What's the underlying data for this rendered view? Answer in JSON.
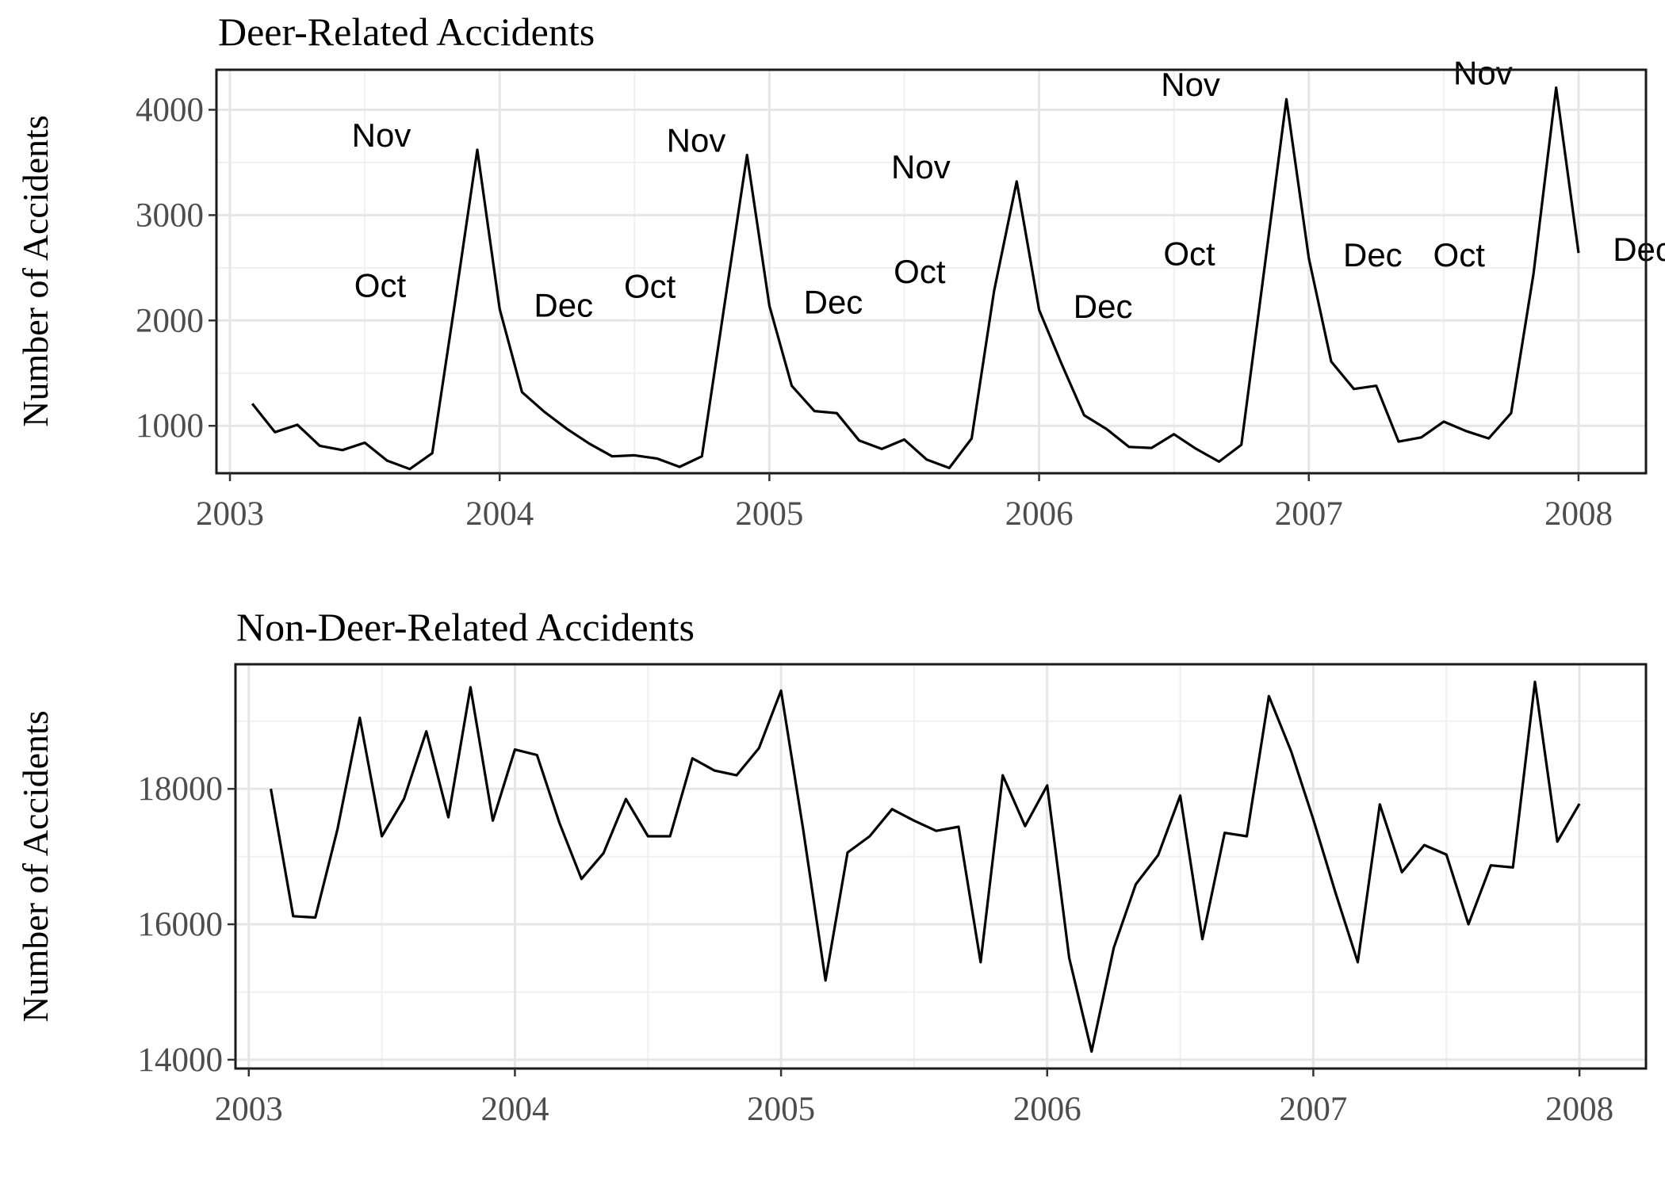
{
  "chart_data": [
    {
      "type": "line",
      "title": "Deer-Related Accidents",
      "xlabel": "",
      "ylabel": "Number of Accidents",
      "xlim": [
        2002.95,
        2008.25
      ],
      "ylim": [
        550,
        4380
      ],
      "x_ticks": [
        2003,
        2004,
        2005,
        2006,
        2007,
        2008
      ],
      "x_tick_labels": [
        "2003",
        "2004",
        "2005",
        "2006",
        "2007",
        "2008"
      ],
      "y_ticks": [
        1000,
        2000,
        3000,
        4000
      ],
      "y_tick_labels": [
        "1000",
        "2000",
        "3000",
        "4000"
      ],
      "grid": true,
      "series": [
        {
          "x": [
            2003.083,
            2003.167,
            2003.25,
            2003.333,
            2003.417,
            2003.5,
            2003.583,
            2003.667,
            2003.75,
            2003.833,
            2003.917,
            2004.0,
            2004.083,
            2004.167,
            2004.25,
            2004.333,
            2004.417,
            2004.5,
            2004.583,
            2004.667,
            2004.75,
            2004.833,
            2004.917,
            2005.0,
            2005.083,
            2005.167,
            2005.25,
            2005.333,
            2005.417,
            2005.5,
            2005.583,
            2005.667,
            2005.75,
            2005.833,
            2005.917,
            2006.0,
            2006.083,
            2006.167,
            2006.25,
            2006.333,
            2006.417,
            2006.5,
            2006.583,
            2006.667,
            2006.75,
            2006.833,
            2006.917,
            2007.0,
            2007.083,
            2007.167,
            2007.25,
            2007.333,
            2007.417,
            2007.5,
            2007.583,
            2007.667,
            2007.75,
            2007.833,
            2007.917,
            2008.0
          ],
          "y": [
            1210,
            940,
            1010,
            810,
            770,
            840,
            670,
            590,
            740,
            2150,
            3620,
            2110,
            1320,
            1130,
            970,
            830,
            710,
            720,
            690,
            610,
            710,
            2140,
            3570,
            2140,
            1380,
            1140,
            1120,
            860,
            780,
            870,
            680,
            600,
            880,
            2280,
            3320,
            2100,
            1590,
            1100,
            970,
            800,
            790,
            920,
            780,
            660,
            820,
            2450,
            4100,
            2590,
            1610,
            1350,
            1380,
            850,
            890,
            1040,
            950,
            880,
            1120,
            2440,
            4210,
            2640
          ]
        }
      ],
      "annotations": [
        {
          "text": "Oct",
          "x": 2003.75,
          "y": 2150
        },
        {
          "text": "Nov",
          "x": 2003.833,
          "y": 3620
        },
        {
          "text": "Dec",
          "x": 2004.083,
          "y": 2110
        },
        {
          "text": "Oct",
          "x": 2004.75,
          "y": 2140
        },
        {
          "text": "Nov",
          "x": 2005.0,
          "y": 3570
        },
        {
          "text": "Dec",
          "x": 2005.083,
          "y": 2140
        },
        {
          "text": "Oct",
          "x": 2005.75,
          "y": 2280
        },
        {
          "text": "Nov",
          "x": 2005.833,
          "y": 3320
        },
        {
          "text": "Dec",
          "x": 2006.083,
          "y": 2100
        },
        {
          "text": "Oct",
          "x": 2006.75,
          "y": 2450
        },
        {
          "text": "Nov",
          "x": 2006.833,
          "y": 4100
        },
        {
          "text": "Dec",
          "x": 2007.083,
          "y": 2590
        },
        {
          "text": "Oct",
          "x": 2007.75,
          "y": 2440
        },
        {
          "text": "Nov",
          "x": 2007.917,
          "y": 4210
        },
        {
          "text": "Dec",
          "x": 2008.083,
          "y": 2640
        }
      ]
    },
    {
      "type": "line",
      "title": "Non-Deer-Related Accidents",
      "xlabel": "",
      "ylabel": "Number of Accidents",
      "xlim": [
        2002.95,
        2008.25
      ],
      "ylim": [
        13870,
        19840
      ],
      "x_ticks": [
        2003,
        2004,
        2005,
        2006,
        2007,
        2008
      ],
      "x_tick_labels": [
        "2003",
        "2004",
        "2005",
        "2006",
        "2007",
        "2008"
      ],
      "y_ticks": [
        14000,
        16000,
        18000
      ],
      "y_tick_labels": [
        "14000",
        "16000",
        "18000"
      ],
      "grid": true,
      "series": [
        {
          "x": [
            2003.083,
            2003.167,
            2003.25,
            2003.333,
            2003.417,
            2003.5,
            2003.583,
            2003.667,
            2003.75,
            2003.833,
            2003.917,
            2004.0,
            2004.083,
            2004.167,
            2004.25,
            2004.333,
            2004.417,
            2004.5,
            2004.583,
            2004.667,
            2004.75,
            2004.833,
            2004.917,
            2005.0,
            2005.083,
            2005.167,
            2005.25,
            2005.333,
            2005.417,
            2005.5,
            2005.583,
            2005.667,
            2005.75,
            2005.833,
            2005.917,
            2006.0,
            2006.083,
            2006.167,
            2006.25,
            2006.333,
            2006.417,
            2006.5,
            2006.583,
            2006.667,
            2006.75,
            2006.833,
            2006.917,
            2007.0,
            2007.083,
            2007.167,
            2007.25,
            2007.333,
            2007.417,
            2007.5,
            2007.583,
            2007.667,
            2007.75,
            2007.833,
            2007.917,
            2008.0
          ],
          "y": [
            18000,
            16120,
            16100,
            17400,
            19050,
            17300,
            17850,
            18850,
            17580,
            19500,
            17530,
            18580,
            18500,
            17500,
            16670,
            17050,
            17850,
            17300,
            17300,
            18450,
            18270,
            18200,
            18600,
            19450,
            17400,
            15170,
            17060,
            17300,
            17700,
            17530,
            17380,
            17440,
            15440,
            18200,
            17450,
            18050,
            15500,
            14120,
            15650,
            16590,
            17020,
            17900,
            15780,
            17350,
            17300,
            19370,
            18550,
            17550,
            16470,
            15440,
            17770,
            16770,
            17170,
            17030,
            16000,
            16870,
            16840,
            19580,
            17220,
            17780
          ]
        }
      ]
    }
  ]
}
